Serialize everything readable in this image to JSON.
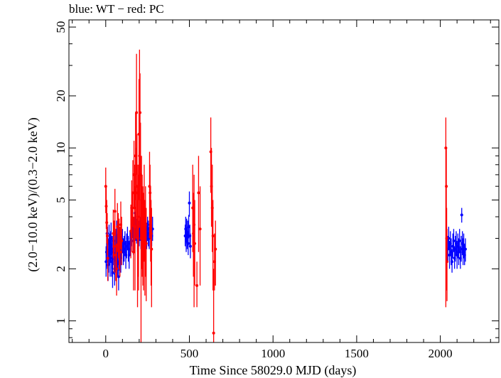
{
  "chart_data": {
    "type": "scatter",
    "title": "blue: WT − red: PC",
    "xlabel": "Time Since 58029.0 MJD (days)",
    "ylabel": "(2.0−10.0 keV)/(0.3−2.0 keV)",
    "y_scale": "log",
    "xlim": [
      -220,
      2350
    ],
    "ylim": [
      0.75,
      55
    ],
    "x_ticks": [
      0,
      500,
      1000,
      1500,
      2000
    ],
    "y_ticks": [
      1,
      2,
      5,
      10,
      20,
      50
    ],
    "grid": false,
    "series": [
      {
        "name": "WT",
        "color": "#0000ff",
        "points": [
          [
            2,
            2.2,
            1.8,
            2.7
          ],
          [
            5,
            2.5,
            2.0,
            3.1
          ],
          [
            8,
            3.2,
            2.6,
            4.0
          ],
          [
            11,
            2.8,
            2.2,
            3.5
          ],
          [
            14,
            2.1,
            1.7,
            2.6
          ],
          [
            17,
            2.4,
            1.9,
            3.0
          ],
          [
            20,
            2.9,
            2.3,
            3.6
          ],
          [
            23,
            2.6,
            2.1,
            3.2
          ],
          [
            26,
            2.3,
            1.8,
            2.9
          ],
          [
            29,
            2.7,
            2.2,
            3.3
          ],
          [
            32,
            3.0,
            2.4,
            3.7
          ],
          [
            35,
            2.2,
            1.8,
            2.8
          ],
          [
            38,
            2.5,
            2.0,
            3.1
          ],
          [
            41,
            1.9,
            1.55,
            2.35
          ],
          [
            44,
            2.6,
            2.1,
            3.2
          ],
          [
            47,
            2.9,
            2.3,
            3.6
          ],
          [
            50,
            2.3,
            1.85,
            2.9
          ],
          [
            53,
            2.0,
            1.6,
            2.5
          ],
          [
            56,
            2.7,
            2.2,
            3.3
          ],
          [
            59,
            2.4,
            1.9,
            3.0
          ],
          [
            62,
            2.8,
            2.3,
            3.4
          ],
          [
            65,
            3.1,
            2.5,
            3.8
          ],
          [
            68,
            2.5,
            2.0,
            3.1
          ],
          [
            71,
            2.2,
            1.8,
            2.7
          ],
          [
            74,
            2.6,
            2.1,
            3.2
          ],
          [
            77,
            1.8,
            1.5,
            2.2
          ],
          [
            80,
            2.4,
            1.95,
            2.95
          ],
          [
            83,
            2.9,
            2.4,
            3.5
          ],
          [
            86,
            2.6,
            2.2,
            3.1
          ],
          [
            90,
            2.3,
            1.9,
            2.8
          ],
          [
            95,
            2.7,
            2.3,
            3.2
          ],
          [
            100,
            2.9,
            2.5,
            3.4
          ],
          [
            105,
            2.5,
            2.1,
            3.0
          ],
          [
            110,
            2.6,
            2.2,
            3.1
          ],
          [
            115,
            2.8,
            2.4,
            3.3
          ],
          [
            120,
            2.4,
            2.0,
            2.9
          ],
          [
            125,
            2.7,
            2.3,
            3.2
          ],
          [
            130,
            3.0,
            2.6,
            3.5
          ],
          [
            135,
            2.6,
            2.2,
            3.1
          ],
          [
            140,
            2.4,
            2.0,
            2.9
          ],
          [
            145,
            2.8,
            2.4,
            3.3
          ],
          [
            150,
            2.9,
            2.5,
            3.4
          ],
          [
            155,
            3.2,
            2.7,
            3.8
          ],
          [
            160,
            3.6,
            3.0,
            4.3
          ],
          [
            165,
            2.9,
            2.4,
            3.5
          ],
          [
            170,
            3.4,
            2.9,
            4.0
          ],
          [
            175,
            4.2,
            3.5,
            5.0
          ],
          [
            180,
            3.5,
            2.9,
            4.2
          ],
          [
            185,
            3.3,
            2.8,
            3.9
          ],
          [
            190,
            3.0,
            2.5,
            3.6
          ],
          [
            195,
            3.7,
            3.1,
            4.4
          ],
          [
            200,
            3.2,
            2.7,
            3.8
          ],
          [
            205,
            3.4,
            2.9,
            4.0
          ],
          [
            210,
            3.1,
            2.6,
            3.7
          ],
          [
            215,
            3.3,
            2.8,
            3.9
          ],
          [
            220,
            2.9,
            2.5,
            3.4
          ],
          [
            225,
            3.2,
            2.7,
            3.8
          ],
          [
            230,
            3.5,
            2.9,
            4.2
          ],
          [
            235,
            3.0,
            2.6,
            3.5
          ],
          [
            240,
            3.3,
            2.8,
            3.9
          ],
          [
            245,
            3.1,
            2.6,
            3.7
          ],
          [
            250,
            3.4,
            2.9,
            4.0
          ],
          [
            255,
            3.2,
            2.7,
            3.8
          ],
          [
            260,
            3.0,
            2.6,
            3.5
          ],
          [
            265,
            3.6,
            3.0,
            4.3
          ],
          [
            270,
            3.3,
            2.8,
            3.9
          ],
          [
            275,
            3.1,
            2.7,
            3.6
          ],
          [
            280,
            3.4,
            2.9,
            4.0
          ],
          [
            475,
            3.1,
            2.7,
            3.6
          ],
          [
            478,
            3.4,
            2.9,
            4.0
          ],
          [
            481,
            2.9,
            2.5,
            3.4
          ],
          [
            484,
            3.3,
            2.8,
            3.9
          ],
          [
            487,
            3.0,
            2.6,
            3.5
          ],
          [
            490,
            3.2,
            2.7,
            3.8
          ],
          [
            493,
            2.8,
            2.4,
            3.3
          ],
          [
            496,
            3.5,
            3.0,
            4.1
          ],
          [
            500,
            4.8,
            4.0,
            5.6
          ],
          [
            503,
            3.1,
            2.7,
            3.6
          ],
          [
            506,
            2.7,
            2.3,
            3.2
          ],
          [
            2045,
            2.6,
            2.2,
            3.1
          ],
          [
            2050,
            3.0,
            2.6,
            3.5
          ],
          [
            2055,
            2.4,
            2.0,
            2.9
          ],
          [
            2060,
            2.8,
            2.4,
            3.3
          ],
          [
            2065,
            2.5,
            2.1,
            3.0
          ],
          [
            2070,
            2.2,
            1.9,
            2.6
          ],
          [
            2075,
            2.7,
            2.3,
            3.2
          ],
          [
            2080,
            2.9,
            2.5,
            3.4
          ],
          [
            2085,
            2.3,
            2.0,
            2.7
          ],
          [
            2090,
            2.6,
            2.2,
            3.1
          ],
          [
            2095,
            2.8,
            2.4,
            3.3
          ],
          [
            2100,
            2.4,
            2.0,
            2.9
          ],
          [
            2105,
            2.7,
            2.3,
            3.2
          ],
          [
            2110,
            2.5,
            2.1,
            3.0
          ],
          [
            2115,
            2.9,
            2.5,
            3.4
          ],
          [
            2120,
            2.3,
            2.0,
            2.7
          ],
          [
            2125,
            2.6,
            2.2,
            3.1
          ],
          [
            2128,
            4.1,
            3.7,
            4.5
          ],
          [
            2132,
            2.8,
            2.4,
            3.3
          ],
          [
            2136,
            2.5,
            2.1,
            3.0
          ],
          [
            2140,
            2.7,
            2.3,
            3.2
          ],
          [
            2145,
            2.4,
            2.1,
            2.8
          ],
          [
            2150,
            2.6,
            2.2,
            3.0
          ]
        ]
      },
      {
        "name": "PC",
        "color": "#ff0000",
        "points": [
          [
            0,
            6.0,
            4.2,
            7.7
          ],
          [
            3,
            4.6,
            3.4,
            6.0
          ],
          [
            6,
            3.7,
            2.8,
            5.0
          ],
          [
            9,
            3.1,
            2.4,
            4.2
          ],
          [
            12,
            2.3,
            1.7,
            3.0
          ],
          [
            45,
            3.2,
            2.3,
            4.4
          ],
          [
            50,
            2.7,
            1.9,
            3.8
          ],
          [
            55,
            4.3,
            3.1,
            5.8
          ],
          [
            60,
            2.4,
            1.7,
            3.4
          ],
          [
            65,
            2.0,
            1.4,
            2.8
          ],
          [
            70,
            3.5,
            2.5,
            4.8
          ],
          [
            75,
            3.1,
            2.3,
            4.2
          ],
          [
            80,
            2.8,
            2.0,
            3.9
          ],
          [
            85,
            2.5,
            1.8,
            3.5
          ],
          [
            90,
            3.6,
            2.6,
            4.9
          ],
          [
            95,
            2.9,
            2.1,
            4.0
          ],
          [
            150,
            3.3,
            2.3,
            4.7
          ],
          [
            155,
            4.5,
            3.0,
            6.5
          ],
          [
            158,
            3.8,
            2.5,
            5.5
          ],
          [
            162,
            5.5,
            3.5,
            8.5
          ],
          [
            166,
            2.5,
            1.5,
            4.0
          ],
          [
            169,
            7.0,
            4.5,
            11.0
          ],
          [
            172,
            4.5,
            2.5,
            8.0
          ],
          [
            175,
            3.5,
            1.5,
            6.0
          ],
          [
            178,
            9.0,
            5.0,
            16.0
          ],
          [
            181,
            5.5,
            3.0,
            10.0
          ],
          [
            184,
            16.0,
            7.0,
            35.0
          ],
          [
            187,
            6.0,
            3.0,
            12.0
          ],
          [
            190,
            3.0,
            1.2,
            6.0
          ],
          [
            193,
            4.0,
            1.8,
            8.0
          ],
          [
            196,
            3.5,
            1.5,
            7.0
          ],
          [
            199,
            12.0,
            5.0,
            25.0
          ],
          [
            202,
            9.0,
            3.5,
            37.0
          ],
          [
            205,
            16.0,
            6.0,
            27.0
          ],
          [
            208,
            7.0,
            3.0,
            14.0
          ],
          [
            211,
            3.0,
            0.75,
            6.0
          ],
          [
            214,
            5.0,
            2.0,
            9.0
          ],
          [
            218,
            4.0,
            1.8,
            7.0
          ],
          [
            222,
            3.5,
            1.6,
            6.0
          ],
          [
            226,
            3.2,
            1.5,
            5.5
          ],
          [
            230,
            4.8,
            2.2,
            8.0
          ],
          [
            234,
            3.0,
            1.4,
            5.0
          ],
          [
            238,
            3.6,
            1.8,
            6.0
          ],
          [
            242,
            2.8,
            1.3,
            4.5
          ],
          [
            262,
            6.0,
            3.0,
            9.5
          ],
          [
            265,
            5.5,
            3.2,
            8.0
          ],
          [
            268,
            4.0,
            2.2,
            6.0
          ],
          [
            271,
            3.2,
            1.6,
            5.0
          ],
          [
            274,
            2.6,
            1.2,
            4.5
          ],
          [
            520,
            4.5,
            2.5,
            8.0
          ],
          [
            524,
            3.2,
            1.8,
            5.5
          ],
          [
            528,
            3.6,
            1.2,
            7.0
          ],
          [
            532,
            2.8,
            1.6,
            5.0
          ],
          [
            545,
            1.6,
            1.2,
            2.2
          ],
          [
            555,
            5.5,
            2.5,
            9.0
          ],
          [
            564,
            3.4,
            1.6,
            6.0
          ],
          [
            628,
            9.5,
            5.5,
            15.0
          ],
          [
            632,
            6.0,
            3.5,
            10.0
          ],
          [
            637,
            4.5,
            2.5,
            8.0
          ],
          [
            641,
            3.1,
            1.5,
            5.0
          ],
          [
            645,
            0.85,
            0.5,
            2.0
          ],
          [
            650,
            2.2,
            1.5,
            3.2
          ],
          [
            656,
            2.6,
            1.6,
            3.8
          ],
          [
            2033,
            10.0,
            1.2,
            15.0
          ],
          [
            2036,
            6.0,
            2.0,
            10.0
          ],
          [
            2038,
            3.0,
            1.5,
            4.5
          ],
          [
            2040,
            2.2,
            1.3,
            3.4
          ]
        ]
      }
    ]
  }
}
